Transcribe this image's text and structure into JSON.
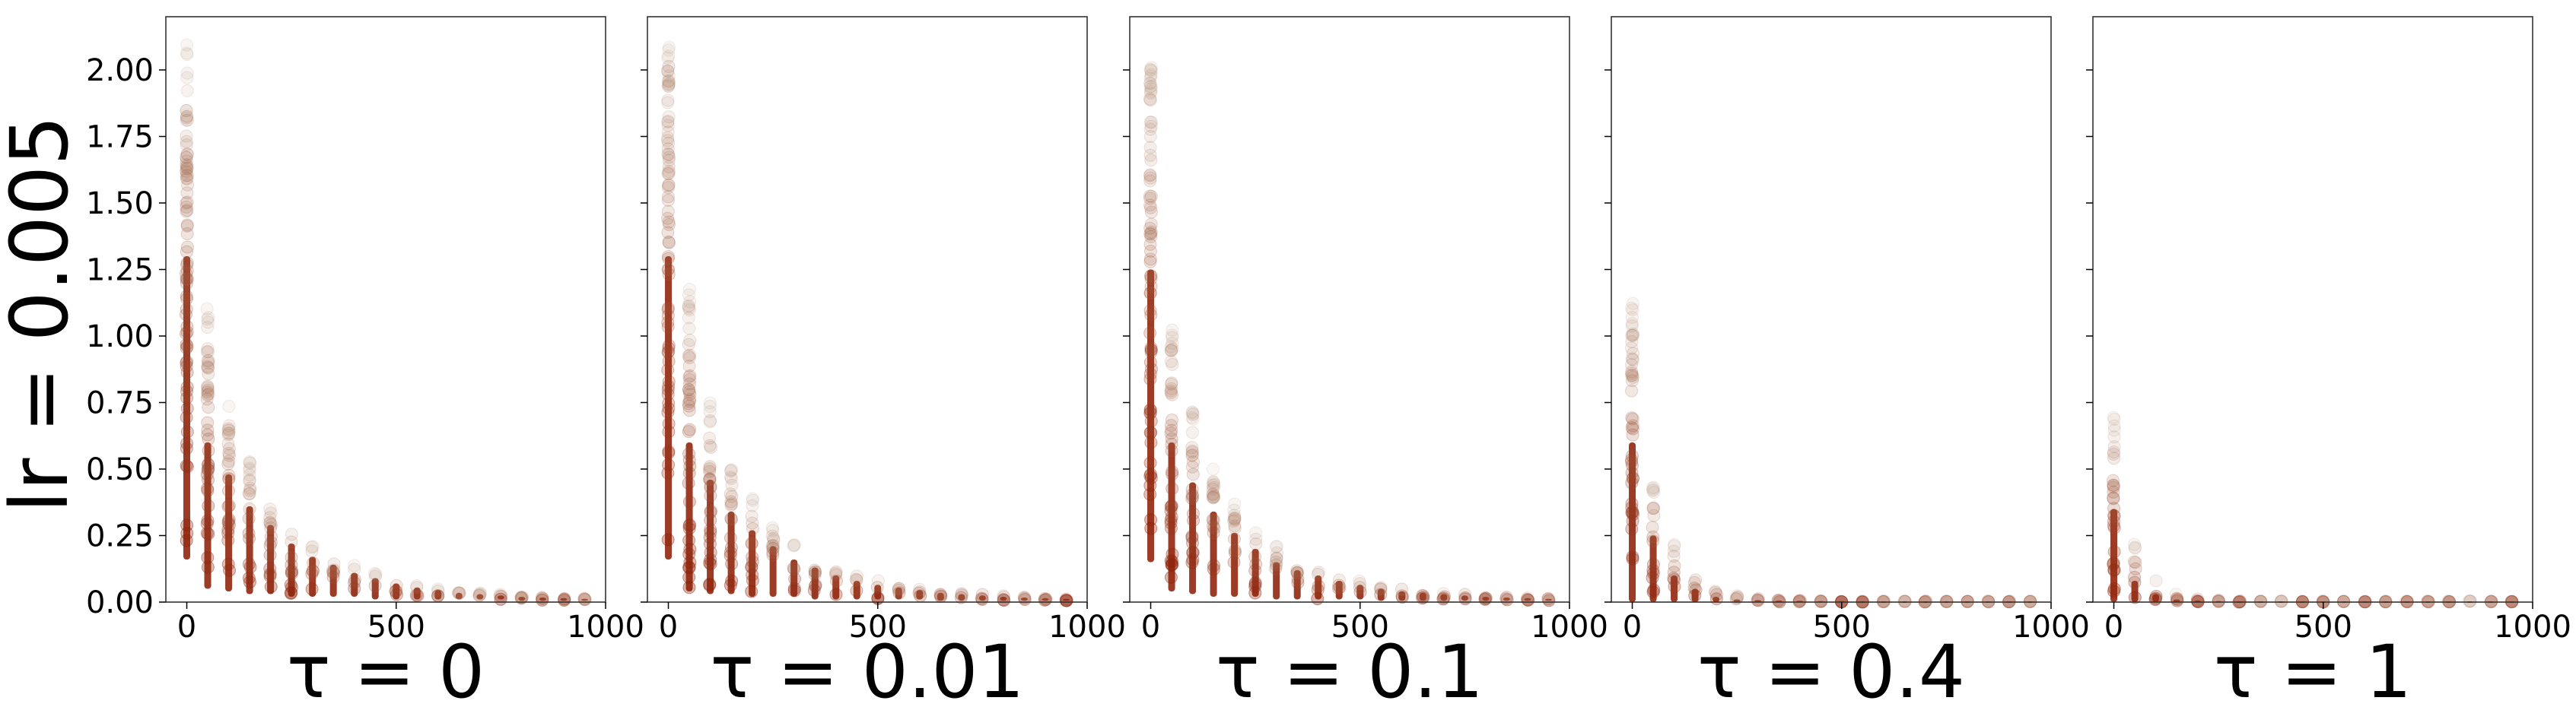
{
  "chart_data": {
    "type": "scatter",
    "row_label": "lr = 0.005",
    "marker_color": "#8b1a00",
    "marker_color_faded": "#b08a70",
    "shared_y": true,
    "grid": false,
    "ylim": [
      0,
      2.2
    ],
    "xlim": [
      -50,
      1000
    ],
    "yticks": [
      0.0,
      0.25,
      0.5,
      0.75,
      1.0,
      1.25,
      1.5,
      1.75,
      2.0
    ],
    "ytick_labels": [
      "0.00",
      "0.25",
      "0.50",
      "0.75",
      "1.00",
      "1.25",
      "1.50",
      "1.75",
      "2.00"
    ],
    "xticks": [
      0,
      500,
      1000
    ],
    "xtick_labels": [
      "0",
      "500",
      "1000"
    ],
    "x_steps": [
      0,
      50,
      100,
      150,
      200,
      250,
      300,
      350,
      400,
      450,
      500,
      550,
      600,
      650,
      700,
      750,
      800,
      850,
      900,
      950
    ],
    "panels": [
      {
        "xlabel": "τ = 0",
        "y_min": [
          0.16,
          0.05,
          0.04,
          0.03,
          0.03,
          0.02,
          0.02,
          0.02,
          0.02,
          0.01,
          0.01,
          0.01,
          0.01,
          0.01,
          0.01,
          0.01,
          0.005,
          0.005,
          0.005,
          0.005
        ],
        "y_dense_top": [
          1.3,
          0.6,
          0.48,
          0.36,
          0.29,
          0.22,
          0.17,
          0.14,
          0.11,
          0.09,
          0.07,
          0.055,
          0.045,
          0.035,
          0.03,
          0.025,
          0.02,
          0.017,
          0.015,
          0.012
        ],
        "y_max": [
          2.1,
          1.12,
          0.75,
          0.53,
          0.39,
          0.29,
          0.22,
          0.17,
          0.14,
          0.11,
          0.085,
          0.065,
          0.05,
          0.04,
          0.035,
          0.03,
          0.025,
          0.02,
          0.017,
          0.015
        ]
      },
      {
        "xlabel": "τ = 0.01",
        "y_min": [
          0.16,
          0.04,
          0.03,
          0.03,
          0.02,
          0.02,
          0.02,
          0.01,
          0.01,
          0.01,
          0.01,
          0.01,
          0.01,
          0.005,
          0.005,
          0.005,
          0.005,
          0.005,
          0.005,
          0.005
        ],
        "y_dense_top": [
          1.3,
          0.6,
          0.46,
          0.34,
          0.27,
          0.21,
          0.16,
          0.13,
          0.1,
          0.08,
          0.065,
          0.055,
          0.045,
          0.035,
          0.03,
          0.025,
          0.02,
          0.017,
          0.015,
          0.012
        ],
        "y_max": [
          2.1,
          1.2,
          0.76,
          0.52,
          0.39,
          0.29,
          0.22,
          0.17,
          0.14,
          0.11,
          0.085,
          0.065,
          0.05,
          0.04,
          0.035,
          0.03,
          0.025,
          0.02,
          0.017,
          0.015
        ]
      },
      {
        "xlabel": "τ = 0.1",
        "y_min": [
          0.15,
          0.04,
          0.03,
          0.02,
          0.02,
          0.02,
          0.01,
          0.01,
          0.01,
          0.01,
          0.01,
          0.005,
          0.005,
          0.005,
          0.005,
          0.005,
          0.005,
          0.005,
          0.005,
          0.005
        ],
        "y_dense_top": [
          1.25,
          0.6,
          0.45,
          0.34,
          0.26,
          0.2,
          0.15,
          0.12,
          0.1,
          0.08,
          0.065,
          0.05,
          0.04,
          0.035,
          0.03,
          0.025,
          0.02,
          0.017,
          0.015,
          0.012
        ],
        "y_max": [
          2.05,
          1.07,
          0.72,
          0.5,
          0.37,
          0.27,
          0.21,
          0.16,
          0.13,
          0.1,
          0.08,
          0.065,
          0.05,
          0.04,
          0.035,
          0.03,
          0.025,
          0.02,
          0.017,
          0.015
        ]
      },
      {
        "xlabel": "τ = 0.4",
        "y_min": [
          0.0,
          0.0,
          0.0,
          0.0,
          0.0,
          0.0,
          0.0,
          0.0,
          0.0,
          0.0,
          0.0,
          0.0,
          0.0,
          0.0,
          0.0,
          0.0,
          0.0,
          0.0,
          0.0,
          0.0
        ],
        "y_dense_top": [
          0.6,
          0.25,
          0.1,
          0.05,
          0.02,
          0.01,
          0.008,
          0.006,
          0.005,
          0.004,
          0.004,
          0.003,
          0.003,
          0.003,
          0.003,
          0.003,
          0.003,
          0.003,
          0.003,
          0.003
        ],
        "y_max": [
          1.15,
          0.44,
          0.22,
          0.11,
          0.05,
          0.025,
          0.015,
          0.01,
          0.008,
          0.006,
          0.005,
          0.004,
          0.004,
          0.004,
          0.004,
          0.004,
          0.004,
          0.004,
          0.004,
          0.004
        ]
      },
      {
        "xlabel": "τ = 1",
        "y_min": [
          0.0,
          0.0,
          0.0,
          0.0,
          0.0,
          0.0,
          0.0,
          0.0,
          0.0,
          0.0,
          0.0,
          0.0,
          0.0,
          0.0,
          0.0,
          0.0,
          0.0,
          0.0,
          0.0,
          0.0
        ],
        "y_dense_top": [
          0.35,
          0.08,
          0.03,
          0.01,
          0.006,
          0.004,
          0.003,
          0.003,
          0.003,
          0.003,
          0.003,
          0.003,
          0.003,
          0.003,
          0.003,
          0.003,
          0.003,
          0.003,
          0.003,
          0.003
        ],
        "y_max": [
          0.7,
          0.22,
          0.09,
          0.03,
          0.015,
          0.008,
          0.005,
          0.004,
          0.004,
          0.004,
          0.004,
          0.004,
          0.004,
          0.004,
          0.004,
          0.004,
          0.004,
          0.004,
          0.004,
          0.004
        ]
      }
    ]
  }
}
